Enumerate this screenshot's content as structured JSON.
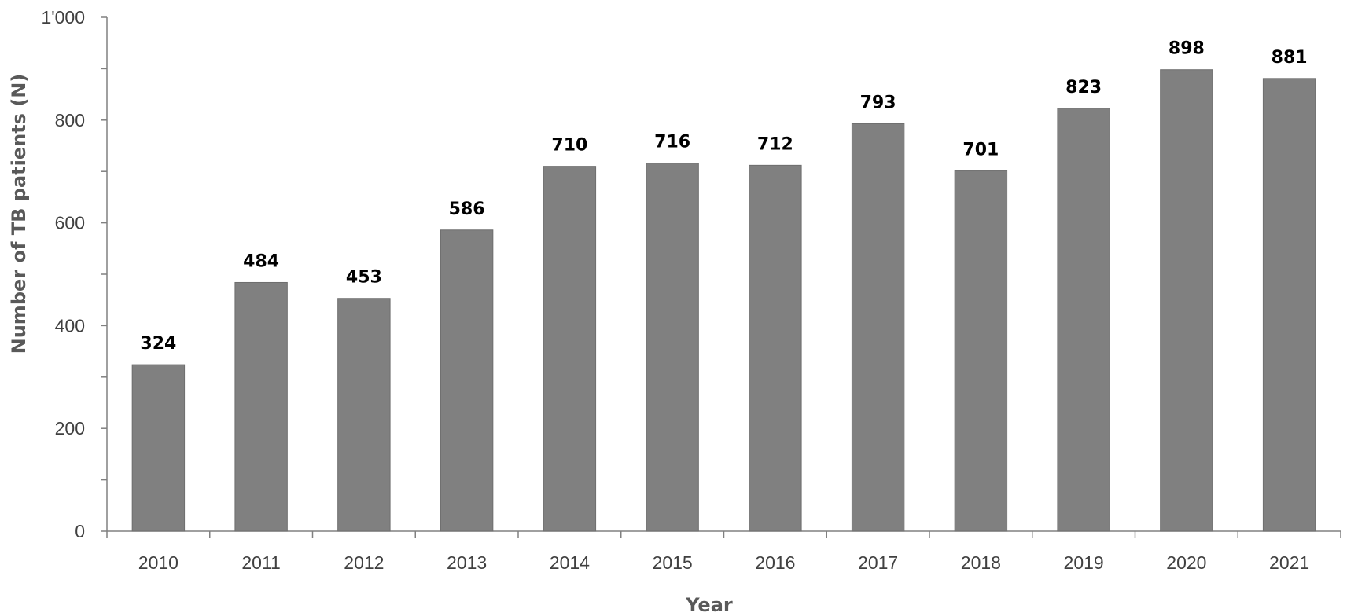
{
  "chart_data": {
    "type": "bar",
    "categories": [
      "2010",
      "2011",
      "2012",
      "2013",
      "2014",
      "2015",
      "2016",
      "2017",
      "2018",
      "2019",
      "2020",
      "2021"
    ],
    "values": [
      324,
      484,
      453,
      586,
      710,
      716,
      712,
      793,
      701,
      823,
      898,
      881
    ],
    "data_labels": [
      "324",
      "484",
      "453",
      "586",
      "710",
      "716",
      "712",
      "793",
      "701",
      "823",
      "898",
      "881"
    ],
    "title": "",
    "xlabel": "Year",
    "ylabel": "Number of TB patients (N)",
    "ylim": [
      0,
      1000
    ],
    "y_ticks": [
      0,
      200,
      400,
      600,
      800,
      1000
    ],
    "y_tick_labels": [
      "0",
      "200",
      "400",
      "600",
      "800",
      "1'000"
    ],
    "grid": false,
    "legend": "none",
    "bar_color": "#808080",
    "bar_edge_color": "#6e6e6e",
    "axis_color": "#808080"
  }
}
